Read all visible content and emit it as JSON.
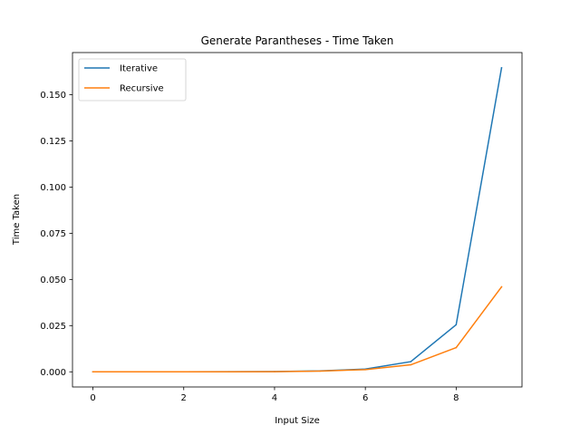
{
  "chart_data": {
    "type": "line",
    "title": "Generate Parantheses - Time Taken",
    "xlabel": "Input Size",
    "ylabel": "Time Taken",
    "x": [
      0,
      1,
      2,
      3,
      4,
      5,
      6,
      7,
      8,
      9
    ],
    "xlim": [
      -0.45,
      9.45
    ],
    "ylim": [
      -0.0082,
      0.1728
    ],
    "xticks": [
      0,
      2,
      4,
      6,
      8
    ],
    "xtick_labels": [
      "0",
      "2",
      "4",
      "6",
      "8"
    ],
    "yticks": [
      0.0,
      0.025,
      0.05,
      0.075,
      0.1,
      0.125,
      0.15
    ],
    "ytick_labels": [
      "0.000",
      "0.025",
      "0.050",
      "0.075",
      "0.100",
      "0.125",
      "0.150"
    ],
    "grid": false,
    "legend_position": "top-left",
    "series": [
      {
        "name": "Iterative",
        "color": "#1f77b4",
        "values": [
          1e-05,
          1e-05,
          2e-05,
          5e-05,
          0.00015,
          0.0005,
          0.0015,
          0.0055,
          0.0255,
          0.1645
        ]
      },
      {
        "name": "Recursive",
        "color": "#ff7f0e",
        "values": [
          1e-05,
          1e-05,
          2e-05,
          4e-05,
          0.0001,
          0.0004,
          0.0012,
          0.0038,
          0.0131,
          0.046
        ]
      }
    ]
  }
}
